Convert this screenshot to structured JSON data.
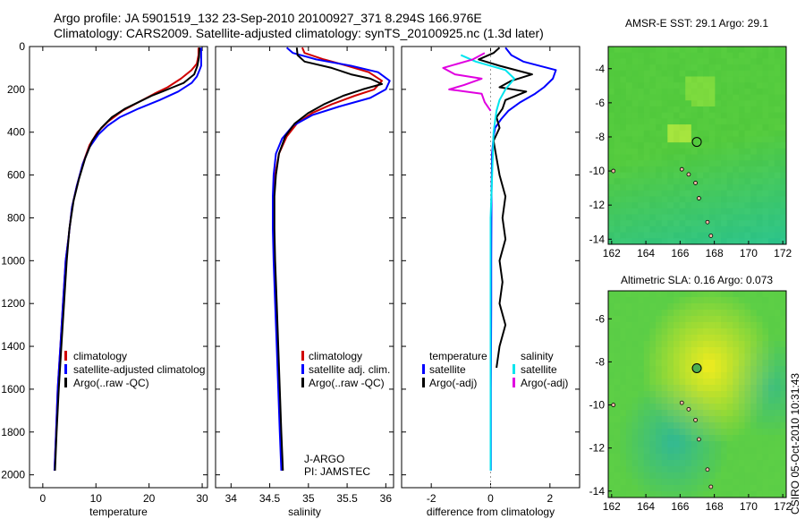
{
  "header": {
    "line1": "Argo profile: JA 5901519_132 23-Sep-2010 20100927_371 8.294S 166.976E",
    "line2": "Climatology: CARS2009. Satellite-adjusted climatology: synTS_20100925.nc (1.3d later)"
  },
  "side_label": "CSIRO 05-Oct-2010 10:31:43",
  "chart_data": [
    {
      "type": "line",
      "id": "temperature",
      "xlabel": "temperature",
      "ylabel": "",
      "xlim": [
        -2.5,
        31
      ],
      "ylim": [
        0,
        2060
      ],
      "y_inverted": true,
      "xticks": [
        0,
        10,
        20,
        30
      ],
      "yticks": [
        0,
        200,
        400,
        600,
        800,
        1000,
        1200,
        1400,
        1600,
        1800,
        2000
      ],
      "legend": [
        "climatology",
        "satellite-adjusted climatolog",
        "Argo(..raw -QC)"
      ],
      "series": [
        {
          "name": "climatology",
          "color": "#d00000",
          "points": [
            [
              29.3,
              5
            ],
            [
              29.3,
              40
            ],
            [
              29,
              80
            ],
            [
              28,
              110
            ],
            [
              26,
              150
            ],
            [
              23.5,
              190
            ],
            [
              21,
              220
            ],
            [
              18,
              260
            ],
            [
              15,
              300
            ],
            [
              12.3,
              350
            ],
            [
              10.3,
              400
            ],
            [
              8.8,
              460
            ],
            [
              7.5,
              550
            ],
            [
              6.4,
              650
            ],
            [
              5.5,
              750
            ],
            [
              4.8,
              900
            ],
            [
              4.3,
              1000
            ],
            [
              3.8,
              1200
            ],
            [
              3.3,
              1400
            ],
            [
              2.8,
              1600
            ],
            [
              2.5,
              1800
            ],
            [
              2.2,
              1980
            ]
          ]
        },
        {
          "name": "satellite-adjusted climatolog",
          "color": "#0000ff",
          "points": [
            [
              29.8,
              5
            ],
            [
              29.8,
              50
            ],
            [
              29.8,
              90
            ],
            [
              29.5,
              110
            ],
            [
              29,
              140
            ],
            [
              28,
              170
            ],
            [
              25.5,
              210
            ],
            [
              22,
              250
            ],
            [
              18,
              290
            ],
            [
              14.5,
              330
            ],
            [
              12.2,
              370
            ],
            [
              10.5,
              410
            ],
            [
              8.8,
              470
            ],
            [
              7.5,
              550
            ],
            [
              6.4,
              650
            ],
            [
              5.5,
              750
            ],
            [
              4.8,
              900
            ],
            [
              4.3,
              1000
            ],
            [
              3.8,
              1200
            ],
            [
              3.3,
              1400
            ],
            [
              2.8,
              1600
            ],
            [
              2.5,
              1800
            ],
            [
              2.2,
              1980
            ]
          ]
        },
        {
          "name": "Argo(..raw -QC)",
          "color": "#000000",
          "points": [
            [
              29.5,
              5
            ],
            [
              29.4,
              50
            ],
            [
              29.1,
              90
            ],
            [
              28.5,
              130
            ],
            [
              27.5,
              150
            ],
            [
              26.5,
              170
            ],
            [
              24.5,
              190
            ],
            [
              22.5,
              210
            ],
            [
              20.5,
              230
            ],
            [
              18,
              260
            ],
            [
              15.5,
              290
            ],
            [
              13,
              330
            ],
            [
              11,
              380
            ],
            [
              9.3,
              440
            ],
            [
              8,
              520
            ],
            [
              6.8,
              620
            ],
            [
              5.8,
              720
            ],
            [
              5,
              850
            ],
            [
              4.5,
              1000
            ],
            [
              4,
              1200
            ],
            [
              3.5,
              1400
            ],
            [
              3,
              1600
            ],
            [
              2.6,
              1800
            ],
            [
              2.3,
              1980
            ]
          ]
        }
      ]
    },
    {
      "type": "line",
      "id": "salinity",
      "xlabel": "salinity",
      "ylabel": "",
      "xlim": [
        33.8,
        36.1
      ],
      "ylim": [
        0,
        2060
      ],
      "y_inverted": true,
      "xticks": [
        34,
        34.5,
        35,
        35.5,
        36
      ],
      "legend": [
        "climatology",
        "satellite adj. clim.",
        "Argo(..raw -QC)"
      ],
      "annotation": [
        "J-ARGO",
        "PI: JAMSTEC"
      ],
      "series": [
        {
          "name": "climatology",
          "color": "#d00000",
          "points": [
            [
              34.92,
              5
            ],
            [
              34.95,
              30
            ],
            [
              35.2,
              60
            ],
            [
              35.5,
              90
            ],
            [
              35.78,
              120
            ],
            [
              35.95,
              160
            ],
            [
              35.85,
              200
            ],
            [
              35.6,
              230
            ],
            [
              35.3,
              270
            ],
            [
              35.05,
              310
            ],
            [
              34.85,
              360
            ],
            [
              34.72,
              420
            ],
            [
              34.62,
              500
            ],
            [
              34.57,
              600
            ],
            [
              34.55,
              700
            ],
            [
              34.55,
              850
            ],
            [
              34.56,
              1000
            ],
            [
              34.58,
              1200
            ],
            [
              34.6,
              1400
            ],
            [
              34.62,
              1600
            ],
            [
              34.64,
              1800
            ],
            [
              34.66,
              1980
            ]
          ]
        },
        {
          "name": "satellite adj. clim.",
          "color": "#0000ff",
          "points": [
            [
              34.72,
              5
            ],
            [
              34.8,
              30
            ],
            [
              35.1,
              60
            ],
            [
              35.55,
              90
            ],
            [
              35.9,
              120
            ],
            [
              36.05,
              160
            ],
            [
              36,
              200
            ],
            [
              35.8,
              240
            ],
            [
              35.4,
              280
            ],
            [
              35.05,
              320
            ],
            [
              34.8,
              370
            ],
            [
              34.66,
              430
            ],
            [
              34.58,
              500
            ],
            [
              34.55,
              600
            ],
            [
              34.54,
              700
            ],
            [
              34.54,
              850
            ],
            [
              34.55,
              1000
            ],
            [
              34.57,
              1200
            ],
            [
              34.59,
              1400
            ],
            [
              34.61,
              1600
            ],
            [
              34.63,
              1800
            ],
            [
              34.65,
              1980
            ]
          ]
        },
        {
          "name": "Argo(..raw -QC)",
          "color": "#000000",
          "points": [
            [
              34.85,
              5
            ],
            [
              34.86,
              40
            ],
            [
              34.95,
              70
            ],
            [
              35.3,
              100
            ],
            [
              35.55,
              130
            ],
            [
              35.8,
              150
            ],
            [
              35.95,
              175
            ],
            [
              35.7,
              200
            ],
            [
              35.45,
              230
            ],
            [
              35.2,
              270
            ],
            [
              35,
              310
            ],
            [
              34.82,
              360
            ],
            [
              34.7,
              420
            ],
            [
              34.62,
              500
            ],
            [
              34.58,
              600
            ],
            [
              34.56,
              700
            ],
            [
              34.56,
              850
            ],
            [
              34.57,
              1000
            ],
            [
              34.59,
              1200
            ],
            [
              34.61,
              1400
            ],
            [
              34.63,
              1600
            ],
            [
              34.65,
              1800
            ],
            [
              34.67,
              1980
            ]
          ]
        }
      ]
    },
    {
      "type": "line",
      "id": "difference",
      "xlabel": "difference from climatology",
      "ylabel": "",
      "xlim": [
        -3,
        3
      ],
      "ylim": [
        0,
        2060
      ],
      "y_inverted": true,
      "xticks": [
        -2,
        0,
        2
      ],
      "legend_groups": [
        {
          "title": "temperature",
          "items": [
            "satellite",
            "Argo(-adj)"
          ]
        },
        {
          "title": "salinity",
          "items": [
            "satellite",
            "Argo(-adj)"
          ]
        }
      ],
      "series": [
        {
          "name": "temperature satellite",
          "color": "#0000ff",
          "points": [
            [
              0.5,
              5
            ],
            [
              0.7,
              40
            ],
            [
              1.1,
              70
            ],
            [
              2.2,
              110
            ],
            [
              2.1,
              150
            ],
            [
              1.8,
              190
            ],
            [
              1.5,
              220
            ],
            [
              1.0,
              260
            ],
            [
              0.6,
              300
            ],
            [
              0.35,
              340
            ],
            [
              0.15,
              380
            ],
            [
              0.1,
              420
            ],
            [
              0.05,
              500
            ],
            [
              0.03,
              700
            ],
            [
              0.02,
              1000
            ],
            [
              0.02,
              1200
            ],
            [
              0.01,
              1600
            ],
            [
              0.01,
              1980
            ]
          ]
        },
        {
          "name": "temperature Argo(-adj)",
          "color": "#000000",
          "points": [
            [
              0.3,
              5
            ],
            [
              0.1,
              30
            ],
            [
              -0.4,
              60
            ],
            [
              0.3,
              90
            ],
            [
              1.4,
              130
            ],
            [
              0.7,
              160
            ],
            [
              0.3,
              190
            ],
            [
              1.2,
              210
            ],
            [
              0.5,
              250
            ],
            [
              0.4,
              290
            ],
            [
              0.2,
              330
            ],
            [
              0.3,
              380
            ],
            [
              0.1,
              440
            ],
            [
              0.2,
              520
            ],
            [
              0.3,
              600
            ],
            [
              0.5,
              700
            ],
            [
              0.4,
              800
            ],
            [
              0.5,
              900
            ],
            [
              0.3,
              1000
            ],
            [
              0.4,
              1100
            ],
            [
              0.3,
              1200
            ],
            [
              0.5,
              1300
            ],
            [
              0.3,
              1400
            ],
            [
              0.2,
              1500
            ]
          ]
        },
        {
          "name": "salinity satellite",
          "color": "#00e5ee",
          "points": [
            [
              -1,
              40
            ],
            [
              -0.5,
              70
            ],
            [
              0.5,
              110
            ],
            [
              0.8,
              150
            ],
            [
              0.5,
              200
            ],
            [
              0.3,
              250
            ],
            [
              0.2,
              300
            ],
            [
              0.1,
              400
            ],
            [
              0.05,
              600
            ],
            [
              0.0,
              800
            ],
            [
              0.0,
              1200
            ],
            [
              0.0,
              1600
            ],
            [
              0.0,
              1980
            ]
          ]
        },
        {
          "name": "salinity Argo(-adj)",
          "color": "#e000e0",
          "points": [
            [
              -0.2,
              30
            ],
            [
              -0.6,
              60
            ],
            [
              -1.6,
              100
            ],
            [
              -1.2,
              130
            ],
            [
              -0.3,
              150
            ],
            [
              -0.9,
              180
            ],
            [
              -1.4,
              200
            ],
            [
              -0.3,
              220
            ],
            [
              -0.2,
              260
            ],
            [
              0.0,
              300
            ]
          ]
        }
      ]
    },
    {
      "type": "heatmap",
      "id": "sst-map",
      "title": "AMSR-E SST: 29.1 Argo: 29.1",
      "xlim": [
        161.8,
        172.2
      ],
      "ylim": [
        -14.3,
        -2.7
      ],
      "xticks": [
        162,
        164,
        166,
        168,
        170,
        172
      ],
      "yticks": [
        -4,
        -6,
        -8,
        -10,
        -12,
        -14
      ],
      "marker": {
        "lon": 166.976,
        "lat": -8.294
      }
    },
    {
      "type": "heatmap",
      "id": "sla-map",
      "title": "Altimetric SLA: 0.16 Argo: 0.073",
      "xlim": [
        161.8,
        172.2
      ],
      "ylim": [
        -14.3,
        -4.7
      ],
      "xticks": [
        162,
        164,
        166,
        168,
        170,
        172
      ],
      "yticks": [
        -6,
        -8,
        -10,
        -12,
        -14
      ],
      "marker": {
        "lon": 166.976,
        "lat": -8.294
      }
    }
  ]
}
